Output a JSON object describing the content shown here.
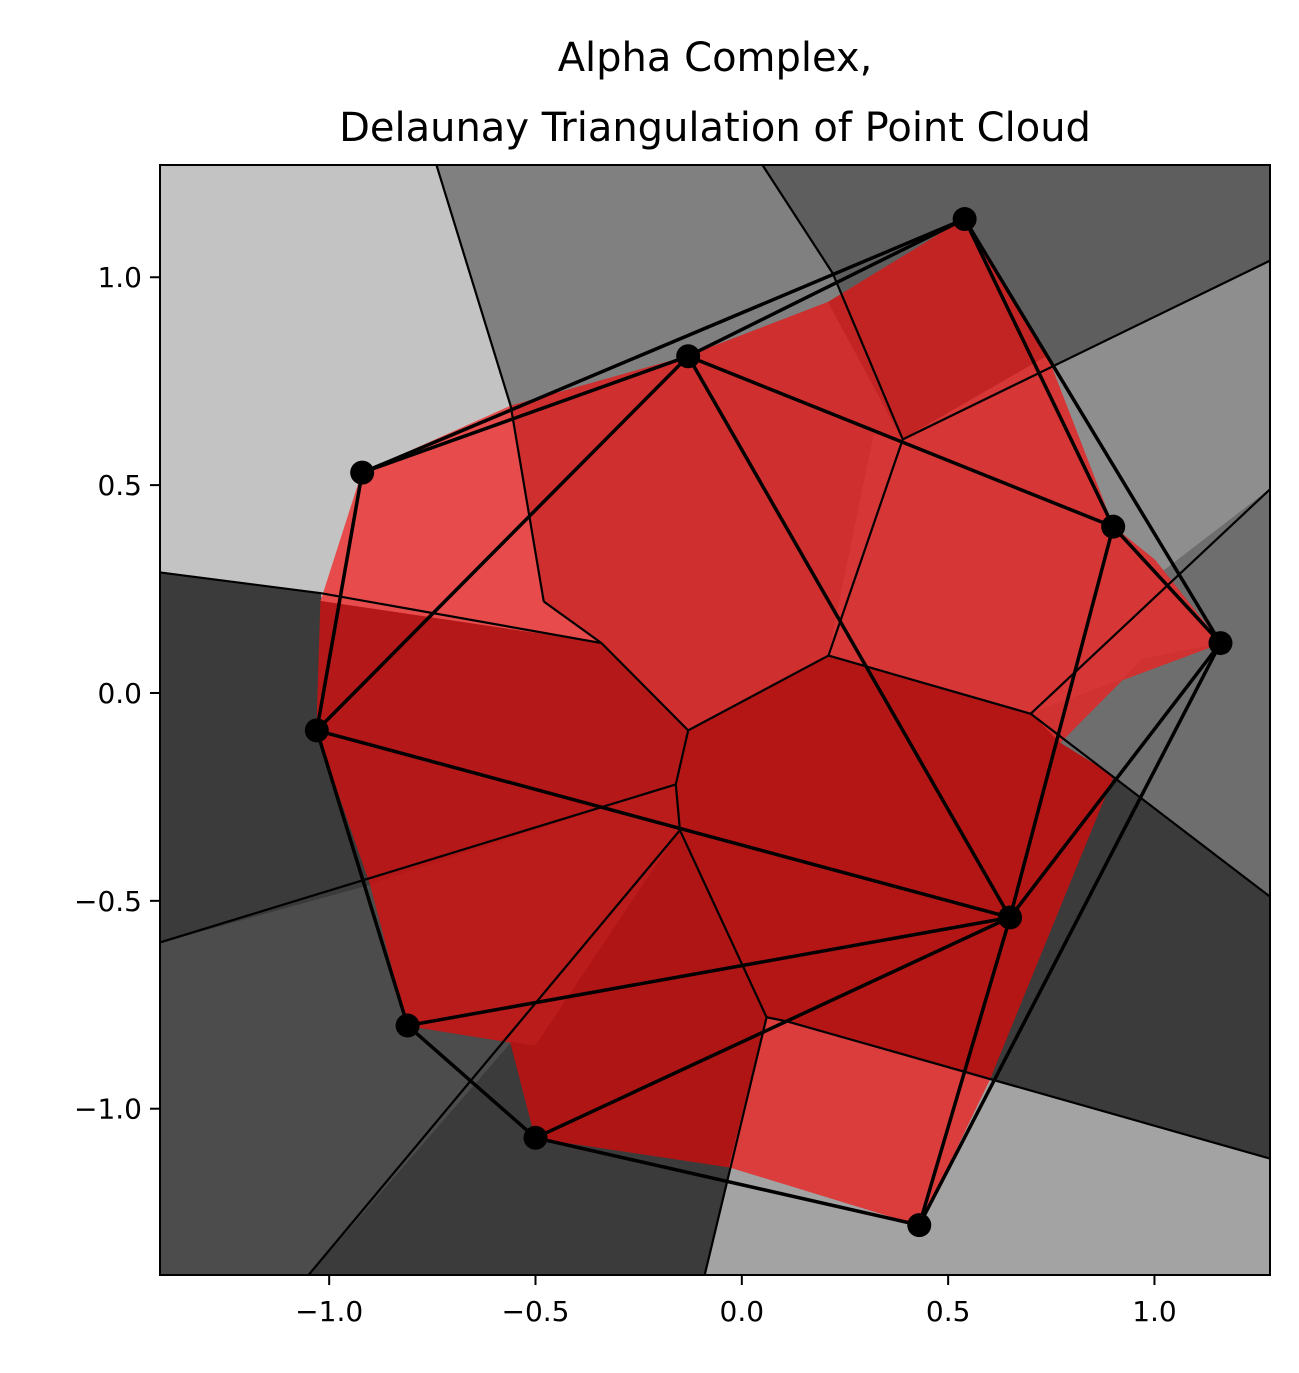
{
  "chart_data": {
    "type": "scatter",
    "title_lines": [
      "Alpha Complex,",
      "Delaunay Triangulation of Point Cloud"
    ],
    "xlabel": "",
    "ylabel": "",
    "xlim": [
      -1.41,
      1.28
    ],
    "ylim": [
      -1.4,
      1.27
    ],
    "grid": false,
    "xticks": [
      {
        "value": -1.0,
        "label": "−1.0"
      },
      {
        "value": -0.5,
        "label": "−0.5"
      },
      {
        "value": 0.0,
        "label": "0.0"
      },
      {
        "value": 0.5,
        "label": "0.5"
      },
      {
        "value": 1.0,
        "label": "1.0"
      }
    ],
    "yticks": [
      {
        "value": -1.0,
        "label": "−1.0"
      },
      {
        "value": -0.5,
        "label": "−0.5"
      },
      {
        "value": 0.0,
        "label": "0.0"
      },
      {
        "value": 0.5,
        "label": "0.5"
      },
      {
        "value": 1.0,
        "label": "1.0"
      }
    ],
    "points": [
      {
        "x": 0.54,
        "y": 1.14
      },
      {
        "x": -0.13,
        "y": 0.81
      },
      {
        "x": -0.92,
        "y": 0.53
      },
      {
        "x": 0.9,
        "y": 0.4
      },
      {
        "x": 1.16,
        "y": 0.12
      },
      {
        "x": -1.03,
        "y": -0.09
      },
      {
        "x": 0.65,
        "y": -0.54
      },
      {
        "x": -0.81,
        "y": -0.8
      },
      {
        "x": -0.5,
        "y": -1.07
      },
      {
        "x": 0.43,
        "y": -1.28
      }
    ],
    "voronoi_regions": [
      {
        "color": "#c3c3c3",
        "vertices": [
          [
            -1.41,
            1.27
          ],
          [
            -0.74,
            1.27
          ],
          [
            -0.56,
            0.69
          ],
          [
            -0.48,
            0.22
          ],
          [
            -1.02,
            0.24
          ],
          [
            -1.41,
            0.29
          ]
        ]
      },
      {
        "color": "#808080",
        "vertices": [
          [
            -0.74,
            1.27
          ],
          [
            0.05,
            1.27
          ],
          [
            0.22,
            1.01
          ],
          [
            0.39,
            0.61
          ],
          [
            0.21,
            0.65
          ],
          [
            -0.3,
            0.65
          ],
          [
            -0.56,
            0.69
          ]
        ]
      },
      {
        "color": "#5e5e5e",
        "vertices": [
          [
            0.05,
            1.27
          ],
          [
            1.28,
            1.27
          ],
          [
            1.28,
            1.04
          ],
          [
            0.39,
            0.61
          ],
          [
            0.22,
            1.01
          ]
        ]
      },
      {
        "color": "#8e8e8e",
        "vertices": [
          [
            1.28,
            1.04
          ],
          [
            1.28,
            0.49
          ],
          [
            0.9,
            0.2
          ],
          [
            0.7,
            -0.05
          ],
          [
            0.8,
            0.1
          ],
          [
            0.39,
            0.61
          ]
        ]
      },
      {
        "color": "#6e6e6e",
        "vertices": [
          [
            1.28,
            0.49
          ],
          [
            1.28,
            -0.49
          ],
          [
            0.9,
            -0.2
          ],
          [
            0.77,
            -0.12
          ],
          [
            0.7,
            -0.05
          ],
          [
            0.9,
            0.2
          ]
        ]
      },
      {
        "color": "#3b3b3b",
        "vertices": [
          [
            1.28,
            -0.49
          ],
          [
            1.28,
            -1.12
          ],
          [
            0.6,
            -0.93
          ],
          [
            0.8,
            -0.35
          ],
          [
            0.9,
            -0.2
          ]
        ]
      },
      {
        "color": "#a3a3a3",
        "vertices": [
          [
            1.28,
            -1.12
          ],
          [
            1.28,
            -1.4
          ],
          [
            -0.09,
            -1.4
          ],
          [
            -0.03,
            -1.14
          ],
          [
            0.6,
            -0.93
          ]
        ]
      },
      {
        "color": "#3b3b3b",
        "vertices": [
          [
            -0.09,
            -1.4
          ],
          [
            -1.05,
            -1.4
          ],
          [
            -0.56,
            -0.84
          ],
          [
            -0.5,
            -0.85
          ],
          [
            -0.03,
            -1.14
          ]
        ]
      },
      {
        "color": "#4c4c4c",
        "vertices": [
          [
            -1.05,
            -1.4
          ],
          [
            -1.41,
            -1.4
          ],
          [
            -1.41,
            -0.6
          ],
          [
            -0.9,
            -0.46
          ],
          [
            -0.85,
            -0.52
          ],
          [
            -0.56,
            -0.84
          ]
        ]
      },
      {
        "color": "#3b3b3b",
        "vertices": [
          [
            -1.41,
            -0.6
          ],
          [
            -1.41,
            0.29
          ],
          [
            -1.02,
            0.24
          ],
          [
            -1.02,
            -0.09
          ],
          [
            -0.9,
            -0.46
          ]
        ]
      }
    ],
    "alpha_cells": [
      {
        "color": "#e84b4b",
        "vertices": [
          [
            -0.92,
            0.53
          ],
          [
            -0.56,
            0.69
          ],
          [
            -0.48,
            0.22
          ],
          [
            -0.34,
            0.12
          ],
          [
            -1.02,
            0.22
          ]
        ]
      },
      {
        "color": "#cf2f2f",
        "vertices": [
          [
            -0.56,
            0.69
          ],
          [
            -0.13,
            0.81
          ],
          [
            0.21,
            0.94
          ],
          [
            0.39,
            0.61
          ],
          [
            0.32,
            0.62
          ],
          [
            0.21,
            0.09
          ],
          [
            -0.13,
            -0.09
          ],
          [
            -0.34,
            0.12
          ],
          [
            -0.48,
            0.22
          ]
        ]
      },
      {
        "color": "#c22424",
        "vertices": [
          [
            0.21,
            0.94
          ],
          [
            0.54,
            1.14
          ],
          [
            0.74,
            0.81
          ],
          [
            0.39,
            0.61
          ]
        ]
      },
      {
        "color": "#d63636",
        "vertices": [
          [
            0.39,
            0.61
          ],
          [
            0.74,
            0.81
          ],
          [
            0.9,
            0.4
          ],
          [
            1.0,
            0.32
          ],
          [
            1.16,
            0.12
          ],
          [
            0.7,
            -0.05
          ],
          [
            0.21,
            0.09
          ],
          [
            0.32,
            0.62
          ]
        ]
      },
      {
        "color": "#d03232",
        "vertices": [
          [
            1.16,
            0.12
          ],
          [
            0.97,
            0.08
          ],
          [
            0.77,
            -0.12
          ],
          [
            0.7,
            -0.05
          ]
        ]
      },
      {
        "color": "#b41818",
        "vertices": [
          [
            -1.02,
            0.22
          ],
          [
            -0.34,
            0.12
          ],
          [
            -0.13,
            -0.09
          ],
          [
            -0.16,
            -0.22
          ],
          [
            -0.9,
            -0.46
          ],
          [
            -1.03,
            -0.09
          ]
        ]
      },
      {
        "color": "#b41616",
        "vertices": [
          [
            -0.13,
            -0.09
          ],
          [
            0.21,
            0.09
          ],
          [
            0.7,
            -0.05
          ],
          [
            0.77,
            -0.12
          ],
          [
            0.9,
            -0.2
          ],
          [
            0.6,
            -0.93
          ],
          [
            0.11,
            -0.79
          ],
          [
            0.06,
            -0.78
          ],
          [
            -0.15,
            -0.33
          ],
          [
            -0.16,
            -0.22
          ]
        ]
      },
      {
        "color": "#ba1b1b",
        "vertices": [
          [
            -0.9,
            -0.46
          ],
          [
            -0.16,
            -0.22
          ],
          [
            -0.15,
            -0.33
          ],
          [
            -0.5,
            -0.85
          ],
          [
            -0.56,
            -0.84
          ],
          [
            -0.81,
            -0.8
          ]
        ]
      },
      {
        "color": "#b01515",
        "vertices": [
          [
            -0.56,
            -0.84
          ],
          [
            -0.5,
            -0.85
          ],
          [
            -0.15,
            -0.33
          ],
          [
            0.06,
            -0.78
          ],
          [
            -0.03,
            -1.14
          ],
          [
            -0.5,
            -1.07
          ]
        ]
      },
      {
        "color": "#db3c3c",
        "vertices": [
          [
            -0.03,
            -1.14
          ],
          [
            0.06,
            -0.78
          ],
          [
            0.11,
            -0.79
          ],
          [
            0.6,
            -0.93
          ],
          [
            0.43,
            -1.28
          ]
        ]
      }
    ],
    "voronoi_edges": [
      [
        [
          -0.74,
          1.27
        ],
        [
          -0.56,
          0.69
        ]
      ],
      [
        [
          -0.56,
          0.69
        ],
        [
          -0.48,
          0.22
        ]
      ],
      [
        [
          -0.48,
          0.22
        ],
        [
          -0.34,
          0.12
        ]
      ],
      [
        [
          -1.41,
          0.29
        ],
        [
          -1.02,
          0.24
        ]
      ],
      [
        [
          -1.02,
          0.24
        ],
        [
          -0.34,
          0.12
        ]
      ],
      [
        [
          0.05,
          1.27
        ],
        [
          0.22,
          1.01
        ]
      ],
      [
        [
          0.22,
          1.01
        ],
        [
          0.39,
          0.61
        ]
      ],
      [
        [
          0.39,
          0.61
        ],
        [
          1.28,
          1.04
        ]
      ],
      [
        [
          0.39,
          0.61
        ],
        [
          0.21,
          0.09
        ]
      ],
      [
        [
          -0.34,
          0.12
        ],
        [
          -0.13,
          -0.09
        ]
      ],
      [
        [
          -0.13,
          -0.09
        ],
        [
          0.21,
          0.09
        ]
      ],
      [
        [
          0.21,
          0.09
        ],
        [
          0.7,
          -0.05
        ]
      ],
      [
        [
          0.7,
          -0.05
        ],
        [
          1.28,
          0.49
        ]
      ],
      [
        [
          0.7,
          -0.05
        ],
        [
          1.28,
          -0.49
        ]
      ],
      [
        [
          -0.13,
          -0.09
        ],
        [
          -0.16,
          -0.22
        ]
      ],
      [
        [
          -0.16,
          -0.22
        ],
        [
          -0.15,
          -0.33
        ]
      ],
      [
        [
          -0.16,
          -0.22
        ],
        [
          -1.41,
          -0.6
        ]
      ],
      [
        [
          -0.15,
          -0.33
        ],
        [
          -1.05,
          -1.4
        ]
      ],
      [
        [
          -0.15,
          -0.33
        ],
        [
          0.06,
          -0.78
        ]
      ],
      [
        [
          0.06,
          -0.78
        ],
        [
          0.11,
          -0.79
        ]
      ],
      [
        [
          0.11,
          -0.79
        ],
        [
          1.28,
          -1.12
        ]
      ],
      [
        [
          0.06,
          -0.78
        ],
        [
          -0.09,
          -1.4
        ]
      ]
    ],
    "delaunay_edges": [
      [
        0,
        1
      ],
      [
        0,
        2
      ],
      [
        1,
        2
      ],
      [
        1,
        3
      ],
      [
        0,
        3
      ],
      [
        0,
        4
      ],
      [
        3,
        4
      ],
      [
        1,
        5
      ],
      [
        2,
        5
      ],
      [
        1,
        6
      ],
      [
        5,
        6
      ],
      [
        3,
        6
      ],
      [
        4,
        6
      ],
      [
        5,
        7
      ],
      [
        6,
        7
      ],
      [
        7,
        8
      ],
      [
        6,
        8
      ],
      [
        8,
        9
      ],
      [
        6,
        9
      ],
      [
        4,
        9
      ]
    ]
  }
}
